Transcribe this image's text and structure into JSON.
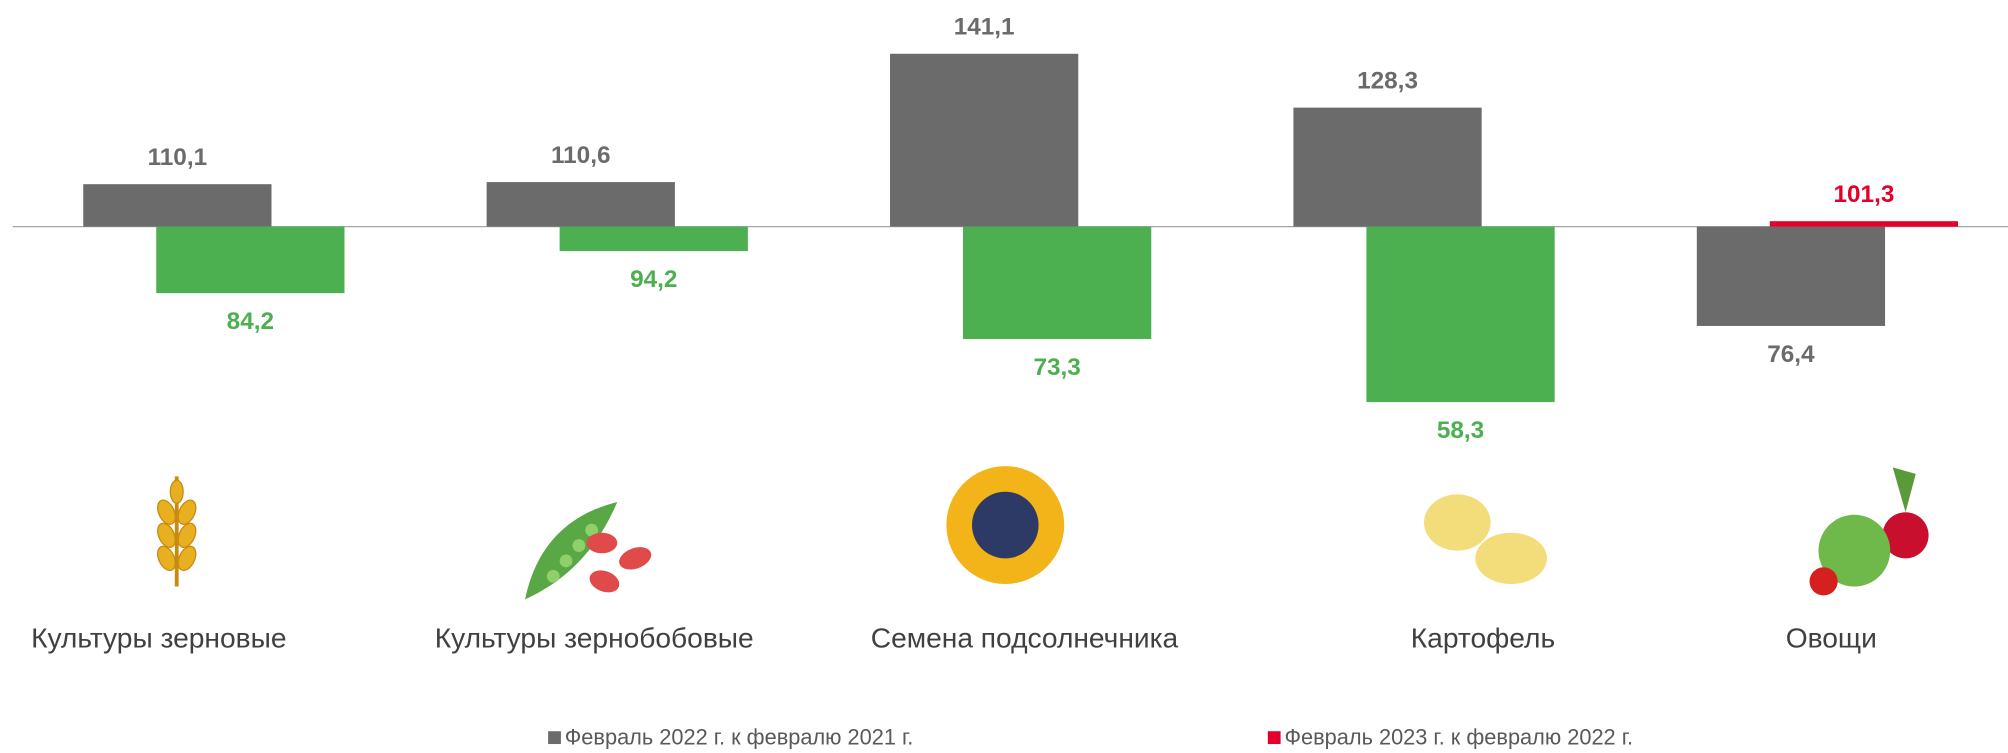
{
  "chart_data": {
    "type": "bar",
    "categories": [
      "Культуры зерновые",
      "Культуры зернобобовые",
      "Семена подсолнечника",
      "Картофель",
      "Овощи"
    ],
    "baseline": 100,
    "ylim": [
      55,
      155
    ],
    "series": [
      {
        "name": "Февраль 2022 г. к февралю 2021 г.",
        "color": "#6b6b6b",
        "values": [
          110.1,
          110.6,
          141.1,
          128.3,
          76.4
        ],
        "value_labels": [
          "110,1",
          "110,6",
          "141,1",
          "128,3",
          "76,4"
        ]
      },
      {
        "name": "Февраль 2023 г. к февралю 2022 г.",
        "color": "#e4002b",
        "colors": [
          "#4caf50",
          "#4caf50",
          "#4caf50",
          "#4caf50",
          "#e4002b"
        ],
        "values": [
          84.2,
          94.2,
          73.3,
          58.3,
          101.3
        ],
        "value_labels": [
          "84,2",
          "94,2",
          "73,3",
          "58,3",
          "101,3"
        ]
      }
    ]
  }
}
